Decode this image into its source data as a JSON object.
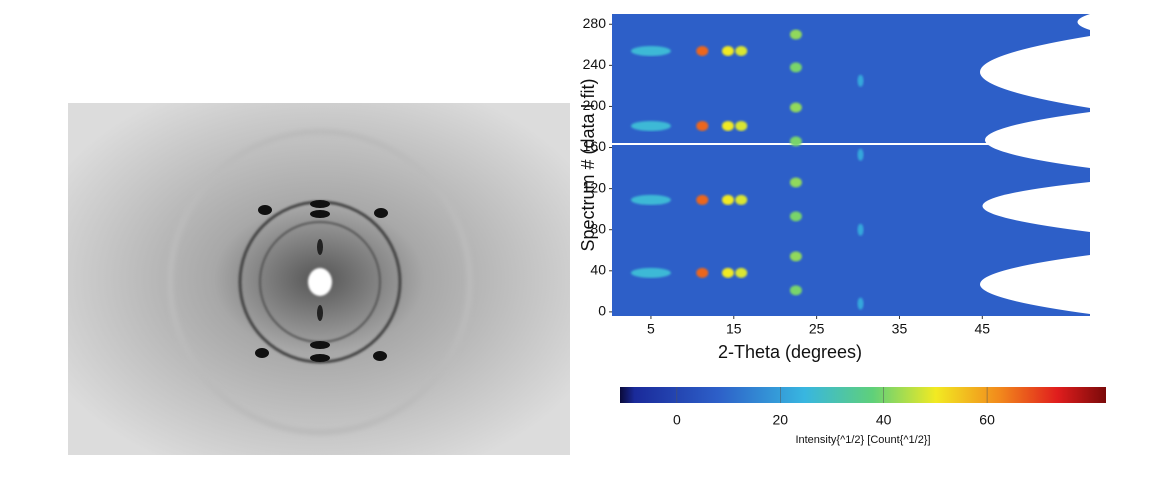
{
  "chart_data": {
    "type": "heatmap",
    "xlabel": "2-Theta (degrees)",
    "ylabel": "Spectrum # (data I fit)",
    "xlim": [
      0.3,
      58
    ],
    "xticks": [
      5,
      15,
      25,
      35,
      45
    ],
    "ylim": [
      -4,
      290
    ],
    "yticks": [
      0,
      40,
      80,
      120,
      160,
      200,
      240,
      280
    ],
    "spots": {
      "x": [
        11.2,
        14.3,
        15.9,
        5,
        11.2,
        14.3,
        15.9,
        5,
        11.2,
        14.3,
        15.9,
        5,
        11.2,
        14.3,
        15.9,
        5,
        22.5,
        22.5,
        22.5,
        22.5,
        22.5,
        22.5,
        22.5,
        22.5,
        30.3,
        30.3,
        30.3,
        30.3
      ],
      "y": [
        38,
        38,
        38,
        38,
        109,
        109,
        109,
        109,
        181,
        181,
        181,
        181,
        254,
        254,
        254,
        254,
        21,
        54,
        93,
        126,
        166,
        199,
        238,
        270,
        8,
        80,
        153,
        225
      ],
      "values": [
        66,
        50,
        48,
        26,
        66,
        50,
        48,
        26,
        66,
        50,
        48,
        26,
        66,
        50,
        48,
        26,
        40,
        42,
        40,
        42,
        40,
        42,
        40,
        42,
        22,
        22,
        22,
        22
      ]
    },
    "colorbar": {
      "label": "Intensity{^1/2} [Count{^1/2}]",
      "clim": [
        -11,
        83
      ],
      "ticks": [
        0,
        20,
        40,
        60
      ]
    }
  }
}
